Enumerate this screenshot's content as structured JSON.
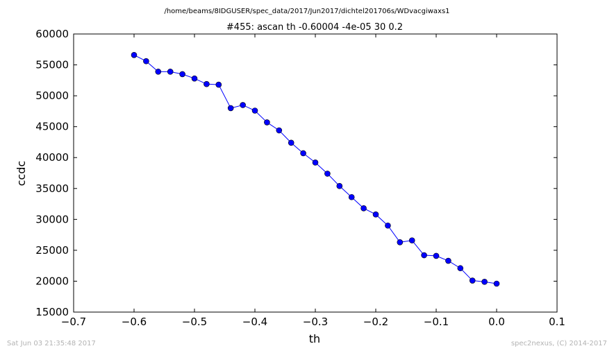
{
  "chart_data": {
    "type": "line",
    "suptitle": "/home/beams/8IDGUSER/spec_data/2017/Jun2017/dichtel201706s/WDvacgiwaxs1",
    "title": "#455: ascan  th -0.60004 -4e-05  30 0.2",
    "xlabel": "th",
    "ylabel": "ccdc",
    "xlim": [
      -0.7,
      0.1
    ],
    "ylim": [
      15000,
      60000
    ],
    "xticks": [
      "−0.7",
      "−0.6",
      "−0.5",
      "−0.4",
      "−0.3",
      "−0.2",
      "−0.1",
      "0.0",
      "0.1"
    ],
    "xtick_values": [
      -0.7,
      -0.6,
      -0.5,
      -0.4,
      -0.3,
      -0.2,
      -0.1,
      0.0,
      0.1
    ],
    "yticks": [
      "15000",
      "20000",
      "25000",
      "30000",
      "35000",
      "40000",
      "45000",
      "50000",
      "55000",
      "60000"
    ],
    "ytick_values": [
      15000,
      20000,
      25000,
      30000,
      35000,
      40000,
      45000,
      50000,
      55000,
      60000
    ],
    "grid": false,
    "series": [
      {
        "color": "#0000ff",
        "x": [
          -0.6,
          -0.58,
          -0.56,
          -0.54,
          -0.52,
          -0.5,
          -0.48,
          -0.46,
          -0.44,
          -0.42,
          -0.4,
          -0.38,
          -0.36,
          -0.34,
          -0.32,
          -0.3,
          -0.28,
          -0.26,
          -0.24,
          -0.22,
          -0.2,
          -0.18,
          -0.16,
          -0.14,
          -0.12,
          -0.1,
          -0.08,
          -0.06,
          -0.04,
          -0.02,
          0.0
        ],
        "y": [
          56600,
          55600,
          53900,
          53900,
          53500,
          52800,
          51900,
          51800,
          48000,
          48500,
          47600,
          45700,
          44400,
          42400,
          40700,
          39200,
          37400,
          35400,
          33600,
          31800,
          30800,
          29000,
          26300,
          26600,
          24200,
          24100,
          23300,
          22100,
          20100,
          19900,
          19600
        ]
      }
    ]
  },
  "footer": {
    "timestamp": "Sat Jun 03 21:35:48 2017",
    "credit": "spec2nexus, (C) 2014-2017"
  }
}
